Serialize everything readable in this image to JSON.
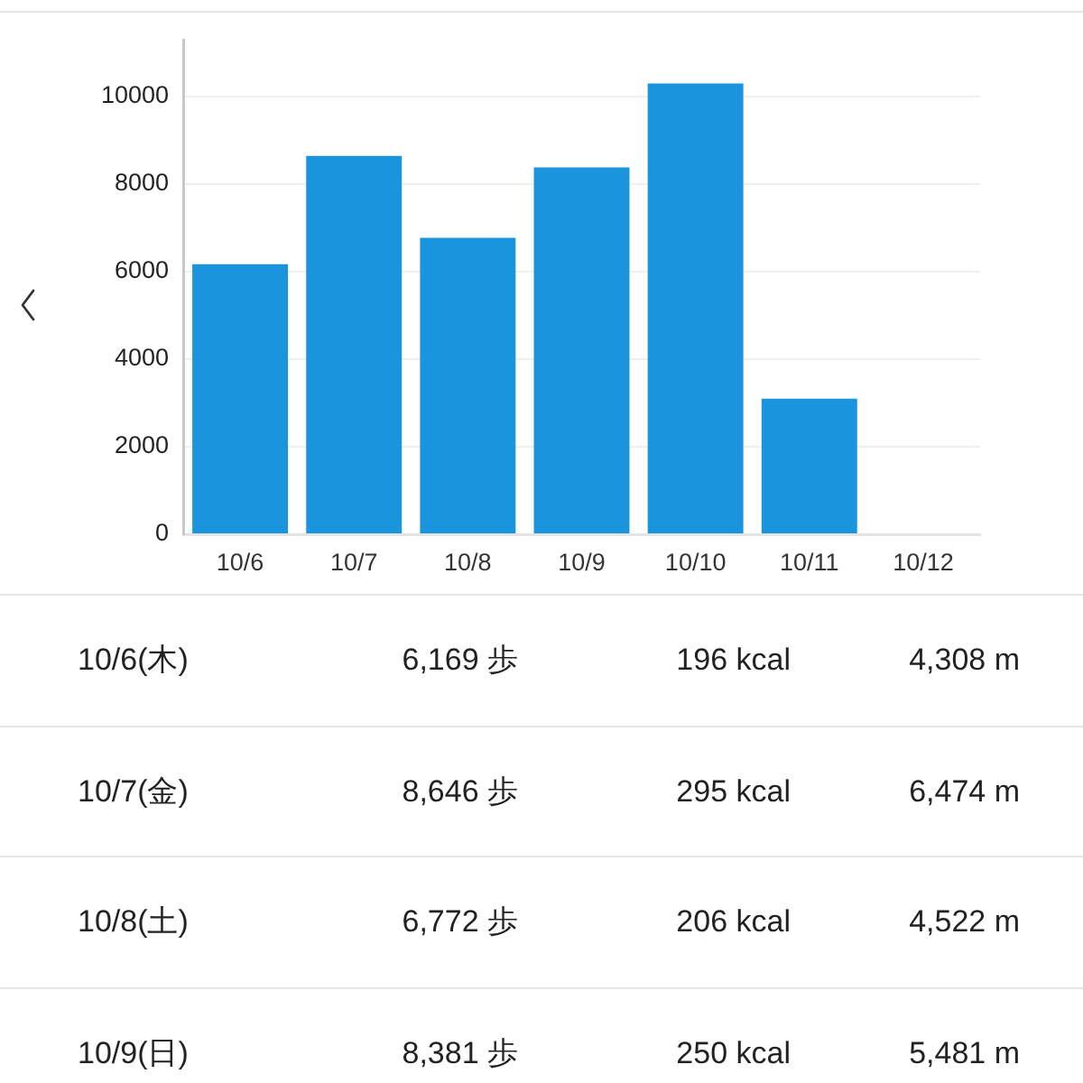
{
  "chart_data": {
    "type": "bar",
    "categories": [
      "10/6",
      "10/7",
      "10/8",
      "10/9",
      "10/10",
      "10/11",
      "10/12"
    ],
    "values": [
      6169,
      8646,
      6772,
      8381,
      10300,
      3100,
      null
    ],
    "color": "#1b94de",
    "ylim": [
      0,
      11300
    ],
    "yticks": [
      0,
      2000,
      4000,
      6000,
      8000,
      10000
    ],
    "grid": "y",
    "annotations": [
      "10/6(木)",
      "6,169 歩",
      "196 kcal",
      "4,308 m",
      "10/7(金)",
      "8,646 歩",
      "295 kcal",
      "6,474 m",
      "10/8(土)",
      "6,772 歩",
      "206 kcal",
      "4,522 m",
      "10/9(日)",
      "8,381 歩",
      "250 kcal",
      "5,481 m"
    ]
  }
}
